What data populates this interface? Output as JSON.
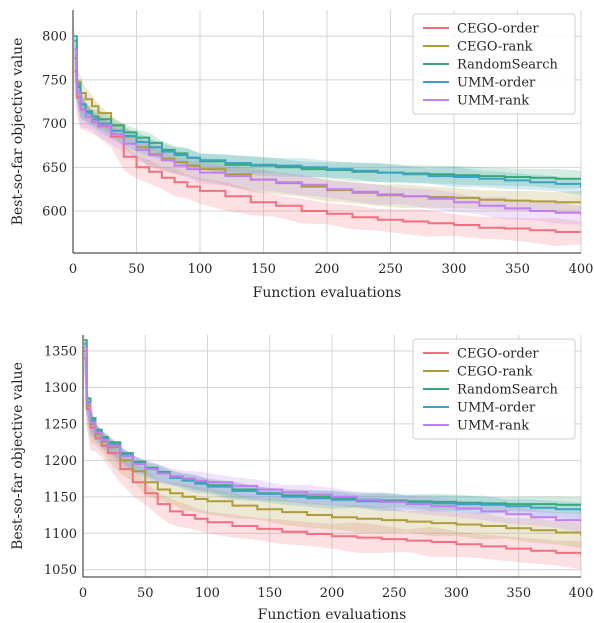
{
  "chart_data": [
    {
      "type": "line",
      "xlabel": "Function evaluations",
      "ylabel": "Best-so-far objective value",
      "xlim": [
        0,
        400
      ],
      "ylim": [
        552,
        830
      ],
      "xticks": [
        0,
        50,
        100,
        150,
        200,
        250,
        300,
        350,
        400
      ],
      "yticks": [
        600,
        650,
        700,
        750,
        800
      ],
      "grid": true,
      "legend_position": "top-right",
      "series": [
        {
          "name": "CEGO-order",
          "color": "#f0707f",
          "x": [
            1,
            3,
            6,
            10,
            15,
            20,
            30,
            40,
            50,
            60,
            70,
            80,
            90,
            100,
            120,
            140,
            160,
            180,
            200,
            220,
            240,
            260,
            280,
            300,
            320,
            340,
            360,
            380,
            400
          ],
          "y": [
            760,
            730,
            716,
            708,
            702,
            697,
            685,
            662,
            650,
            645,
            638,
            633,
            628,
            623,
            617,
            610,
            606,
            600,
            597,
            593,
            590,
            588,
            586,
            584,
            581,
            580,
            578,
            576,
            575
          ],
          "band": 14
        },
        {
          "name": "CEGO-rank",
          "color": "#ad9c3c",
          "x": [
            1,
            3,
            6,
            10,
            15,
            20,
            30,
            40,
            50,
            60,
            70,
            80,
            90,
            100,
            120,
            140,
            160,
            180,
            200,
            220,
            240,
            260,
            280,
            300,
            320,
            340,
            360,
            380,
            400
          ],
          "y": [
            775,
            748,
            735,
            728,
            720,
            712,
            698,
            685,
            673,
            665,
            660,
            656,
            652,
            648,
            642,
            636,
            632,
            628,
            624,
            621,
            618,
            617,
            616,
            615,
            613,
            612,
            611,
            610,
            610
          ],
          "band": 12
        },
        {
          "name": "RandomSearch",
          "color": "#3ba776",
          "x": [
            1,
            3,
            6,
            10,
            15,
            20,
            30,
            40,
            50,
            60,
            70,
            80,
            90,
            100,
            120,
            140,
            160,
            180,
            200,
            220,
            240,
            260,
            280,
            300,
            320,
            340,
            360,
            380,
            400
          ],
          "y": [
            795,
            742,
            722,
            714,
            708,
            705,
            698,
            690,
            684,
            678,
            670,
            666,
            661,
            657,
            653,
            652,
            650,
            648,
            647,
            645,
            644,
            643,
            642,
            641,
            640,
            639,
            638,
            637,
            636
          ],
          "band": 10
        },
        {
          "name": "UMM-order",
          "color": "#3ba3c4",
          "x": [
            1,
            3,
            6,
            10,
            15,
            20,
            30,
            40,
            50,
            60,
            70,
            80,
            90,
            100,
            120,
            140,
            160,
            180,
            200,
            220,
            240,
            260,
            280,
            300,
            320,
            340,
            360,
            380,
            400
          ],
          "y": [
            800,
            745,
            722,
            712,
            705,
            700,
            692,
            686,
            679,
            673,
            668,
            664,
            661,
            658,
            655,
            653,
            652,
            650,
            648,
            646,
            644,
            642,
            640,
            639,
            637,
            635,
            633,
            631,
            627
          ],
          "band": 10
        },
        {
          "name": "UMM-rank",
          "color": "#c27ef0",
          "x": [
            1,
            3,
            6,
            10,
            15,
            20,
            30,
            40,
            50,
            60,
            70,
            80,
            90,
            100,
            120,
            140,
            160,
            180,
            200,
            220,
            240,
            260,
            280,
            300,
            320,
            340,
            360,
            380,
            400
          ],
          "y": [
            785,
            735,
            716,
            708,
            702,
            698,
            688,
            677,
            670,
            664,
            658,
            652,
            648,
            644,
            640,
            636,
            633,
            630,
            625,
            622,
            619,
            617,
            614,
            610,
            606,
            603,
            600,
            598,
            595
          ],
          "band": 11
        }
      ]
    },
    {
      "type": "line",
      "xlabel": "Function evaluations",
      "ylabel": "Best-so-far objective value",
      "xlim": [
        0,
        400
      ],
      "ylim": [
        1040,
        1372
      ],
      "xticks": [
        0,
        50,
        100,
        150,
        200,
        250,
        300,
        350,
        400
      ],
      "yticks": [
        1050,
        1100,
        1150,
        1200,
        1250,
        1300,
        1350
      ],
      "grid": true,
      "legend_position": "top-right",
      "series": [
        {
          "name": "CEGO-order",
          "color": "#f0707f",
          "x": [
            1,
            3,
            6,
            10,
            15,
            20,
            30,
            40,
            50,
            60,
            70,
            80,
            90,
            100,
            120,
            140,
            160,
            180,
            200,
            220,
            240,
            260,
            280,
            300,
            320,
            340,
            360,
            380,
            400
          ],
          "y": [
            1340,
            1270,
            1245,
            1230,
            1220,
            1210,
            1188,
            1170,
            1155,
            1140,
            1130,
            1125,
            1120,
            1115,
            1110,
            1106,
            1102,
            1099,
            1096,
            1094,
            1092,
            1090,
            1088,
            1085,
            1082,
            1079,
            1076,
            1073,
            1070
          ],
          "band": 18
        },
        {
          "name": "CEGO-rank",
          "color": "#ad9c3c",
          "x": [
            1,
            3,
            6,
            10,
            15,
            20,
            30,
            40,
            50,
            60,
            70,
            80,
            90,
            100,
            120,
            140,
            160,
            180,
            200,
            220,
            240,
            260,
            280,
            300,
            320,
            340,
            360,
            380,
            400
          ],
          "y": [
            1350,
            1275,
            1250,
            1236,
            1226,
            1218,
            1200,
            1185,
            1170,
            1160,
            1155,
            1150,
            1147,
            1144,
            1138,
            1133,
            1129,
            1125,
            1122,
            1120,
            1118,
            1116,
            1114,
            1112,
            1110,
            1107,
            1104,
            1101,
            1097
          ],
          "band": 16
        },
        {
          "name": "RandomSearch",
          "color": "#3ba776",
          "x": [
            1,
            3,
            6,
            10,
            15,
            20,
            30,
            40,
            50,
            60,
            70,
            80,
            90,
            100,
            120,
            140,
            160,
            180,
            200,
            220,
            240,
            260,
            280,
            300,
            320,
            340,
            360,
            380,
            400
          ],
          "y": [
            1365,
            1285,
            1258,
            1242,
            1232,
            1225,
            1210,
            1198,
            1190,
            1184,
            1178,
            1173,
            1170,
            1166,
            1160,
            1155,
            1152,
            1150,
            1148,
            1146,
            1145,
            1144,
            1143,
            1142,
            1141,
            1140,
            1140,
            1139,
            1138
          ],
          "band": 10
        },
        {
          "name": "UMM-order",
          "color": "#3ba3c4",
          "x": [
            1,
            3,
            6,
            10,
            15,
            20,
            30,
            40,
            50,
            60,
            70,
            80,
            90,
            100,
            120,
            140,
            160,
            180,
            200,
            220,
            240,
            260,
            280,
            300,
            320,
            340,
            360,
            380,
            400
          ],
          "y": [
            1360,
            1280,
            1255,
            1240,
            1230,
            1222,
            1208,
            1196,
            1188,
            1182,
            1176,
            1172,
            1168,
            1164,
            1158,
            1154,
            1150,
            1148,
            1146,
            1144,
            1143,
            1142,
            1141,
            1140,
            1139,
            1137,
            1135,
            1133,
            1130
          ],
          "band": 11
        },
        {
          "name": "UMM-rank",
          "color": "#c27ef0",
          "x": [
            1,
            3,
            6,
            10,
            15,
            20,
            30,
            40,
            50,
            60,
            70,
            80,
            90,
            100,
            120,
            140,
            160,
            180,
            200,
            220,
            240,
            260,
            280,
            300,
            320,
            340,
            360,
            380,
            400
          ],
          "y": [
            1355,
            1278,
            1252,
            1238,
            1228,
            1220,
            1206,
            1195,
            1188,
            1182,
            1178,
            1175,
            1172,
            1170,
            1165,
            1160,
            1156,
            1153,
            1150,
            1146,
            1143,
            1140,
            1137,
            1134,
            1130,
            1126,
            1122,
            1118,
            1115
          ],
          "band": 12
        }
      ]
    }
  ]
}
